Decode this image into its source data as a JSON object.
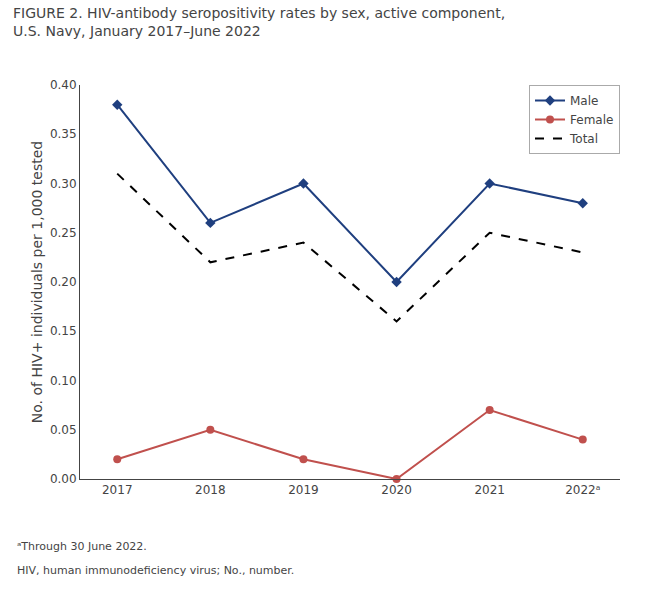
{
  "chart_data": {
    "type": "line",
    "title": "FIGURE 2. HIV-antibody seropositivity rates by sex, active component, U.S. Navy, January 2017–June 2022",
    "categories": [
      "2017",
      "2018",
      "2019",
      "2020",
      "2021",
      "2022ᵃ"
    ],
    "series": [
      {
        "name": "Male",
        "color": "#1f3f7f",
        "marker": "diamond",
        "line_style": "solid",
        "values": [
          0.38,
          0.26,
          0.3,
          0.2,
          0.3,
          0.28
        ]
      },
      {
        "name": "Female",
        "color": "#c0504d",
        "marker": "circle",
        "line_style": "solid",
        "values": [
          0.02,
          0.05,
          0.02,
          0.0,
          0.07,
          0.04
        ]
      },
      {
        "name": "Total",
        "color": "#000000",
        "marker": "none",
        "line_style": "dashed",
        "values": [
          0.31,
          0.22,
          0.24,
          0.16,
          0.25,
          0.23
        ]
      }
    ],
    "ylabel": "No. of HIV+ individuals per 1,000 tested",
    "ylim": [
      0.0,
      0.4
    ],
    "yticks": [
      {
        "value": 0.0,
        "label": "0.00"
      },
      0.05,
      {
        "value": 0.1,
        "label": "0.10"
      },
      0.15,
      {
        "value": 0.2,
        "label": "0.20"
      },
      0.25,
      {
        "value": 0.3,
        "label": "0.30"
      },
      0.35,
      {
        "value": 0.4,
        "label": "0.40"
      }
    ],
    "grid": false,
    "legend": "upper right",
    "annotations": [
      "ᵃThrough 30 June 2022.",
      "HIV, human immunodeficiency virus; No., number."
    ]
  }
}
